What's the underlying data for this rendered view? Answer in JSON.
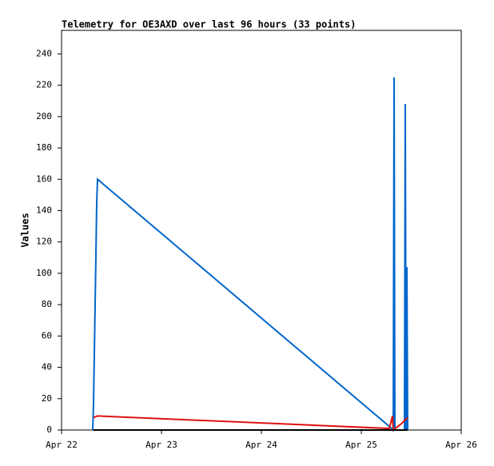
{
  "chart_data": {
    "type": "line",
    "title": "Telemetry for OE3AXD over last 96 hours (33 points)",
    "y_label": "Values",
    "xlim": [
      0,
      4
    ],
    "xticks": [
      {
        "value": 0,
        "label": "Apr 22"
      },
      {
        "value": 1,
        "label": "Apr 23"
      },
      {
        "value": 2,
        "label": "Apr 24"
      },
      {
        "value": 3,
        "label": "Apr 25"
      },
      {
        "value": 4,
        "label": "Apr 26"
      }
    ],
    "ylim": [
      0,
      255
    ],
    "yticks": [
      0,
      20,
      40,
      60,
      80,
      100,
      120,
      140,
      160,
      180,
      200,
      220,
      240
    ],
    "grid": false,
    "series": [
      {
        "color": "#0066cc",
        "x": [
          0.312,
          0.32,
          0.328,
          0.336,
          0.344,
          0.352,
          0.36,
          3.304,
          3.32,
          3.328,
          3.336,
          3.432,
          3.44,
          3.448,
          3.456,
          3.464
        ],
        "values": [
          0,
          17,
          48,
          80,
          112,
          145,
          160,
          1,
          0,
          225,
          0,
          0,
          208,
          0,
          104,
          0
        ]
      },
      {
        "color": "#dd1111",
        "x": [
          0.32,
          0.36,
          3.28,
          3.312,
          3.32,
          3.4,
          3.464
        ],
        "values": [
          8,
          9,
          1,
          9,
          0,
          4,
          8
        ]
      },
      {
        "color": "#000000",
        "x": [
          0.32,
          3.464
        ],
        "values": [
          0,
          0
        ]
      }
    ]
  }
}
